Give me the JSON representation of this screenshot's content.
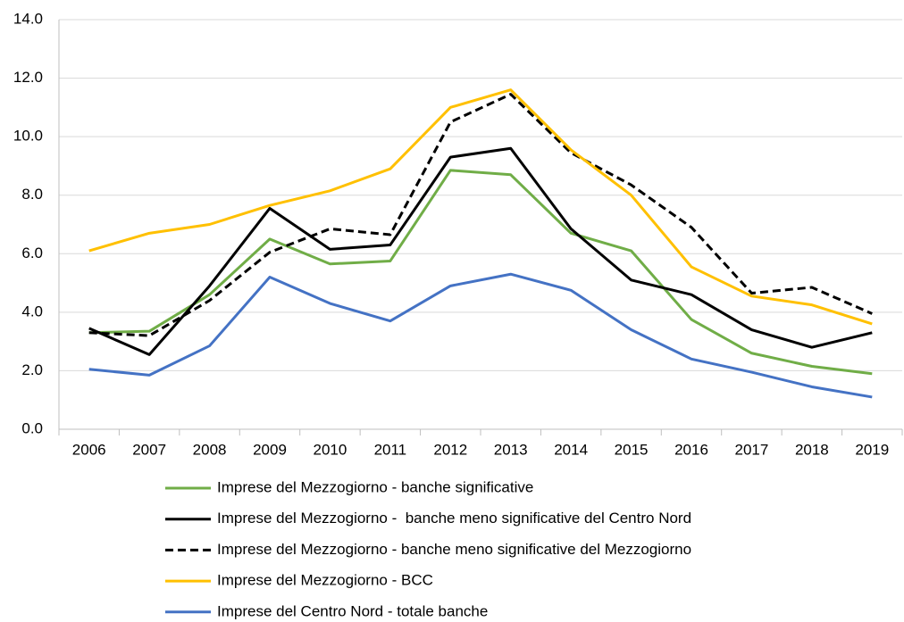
{
  "chart_data": {
    "type": "line",
    "categories": [
      "2006",
      "2007",
      "2008",
      "2009",
      "2010",
      "2011",
      "2012",
      "2013",
      "2014",
      "2015",
      "2016",
      "2017",
      "2018",
      "2019"
    ],
    "ylim": [
      0,
      14
    ],
    "yticks": [
      {
        "value": 0,
        "label": "0.0"
      },
      {
        "value": 2,
        "label": "2.0"
      },
      {
        "value": 4,
        "label": "4.0"
      },
      {
        "value": 6,
        "label": "6.0"
      },
      {
        "value": 8,
        "label": "8.0"
      },
      {
        "value": 10,
        "label": "10.0"
      },
      {
        "value": 12,
        "label": "12.0"
      },
      {
        "value": 14,
        "label": "14.0"
      }
    ],
    "grid": true,
    "legend": "bottom",
    "series": [
      {
        "name": "Imprese del Mezzogiorno - banche significative",
        "color": "#70ad47",
        "dashed": false,
        "values": [
          3.3,
          3.35,
          4.6,
          6.5,
          5.65,
          5.75,
          8.85,
          8.7,
          6.7,
          6.1,
          3.75,
          2.6,
          2.15,
          1.9
        ]
      },
      {
        "name": "Imprese del Mezzogiorno -  banche meno significative del Centro Nord",
        "color": "#000000",
        "dashed": false,
        "values": [
          3.45,
          2.55,
          4.9,
          7.55,
          6.15,
          6.3,
          9.3,
          9.6,
          6.85,
          5.1,
          4.6,
          3.4,
          2.8,
          3.3
        ]
      },
      {
        "name": "Imprese del Mezzogiorno - banche meno significative del Mezzogiorno",
        "color": "#000000",
        "dashed": true,
        "values": [
          3.3,
          3.2,
          4.4,
          6.05,
          6.85,
          6.65,
          10.5,
          11.45,
          9.45,
          8.35,
          6.9,
          4.65,
          4.85,
          3.95
        ]
      },
      {
        "name": "Imprese del Mezzogiorno - BCC",
        "color": "#ffc000",
        "dashed": false,
        "values": [
          6.1,
          6.7,
          7.0,
          7.65,
          8.15,
          8.9,
          11.0,
          11.6,
          9.55,
          8.0,
          5.55,
          4.55,
          4.25,
          3.6
        ]
      },
      {
        "name": "Imprese del Centro Nord - totale banche",
        "color": "#4472c4",
        "dashed": false,
        "values": [
          2.05,
          1.85,
          2.85,
          5.2,
          4.3,
          3.7,
          4.9,
          5.3,
          4.75,
          3.4,
          2.4,
          1.95,
          1.45,
          1.1
        ]
      }
    ]
  }
}
